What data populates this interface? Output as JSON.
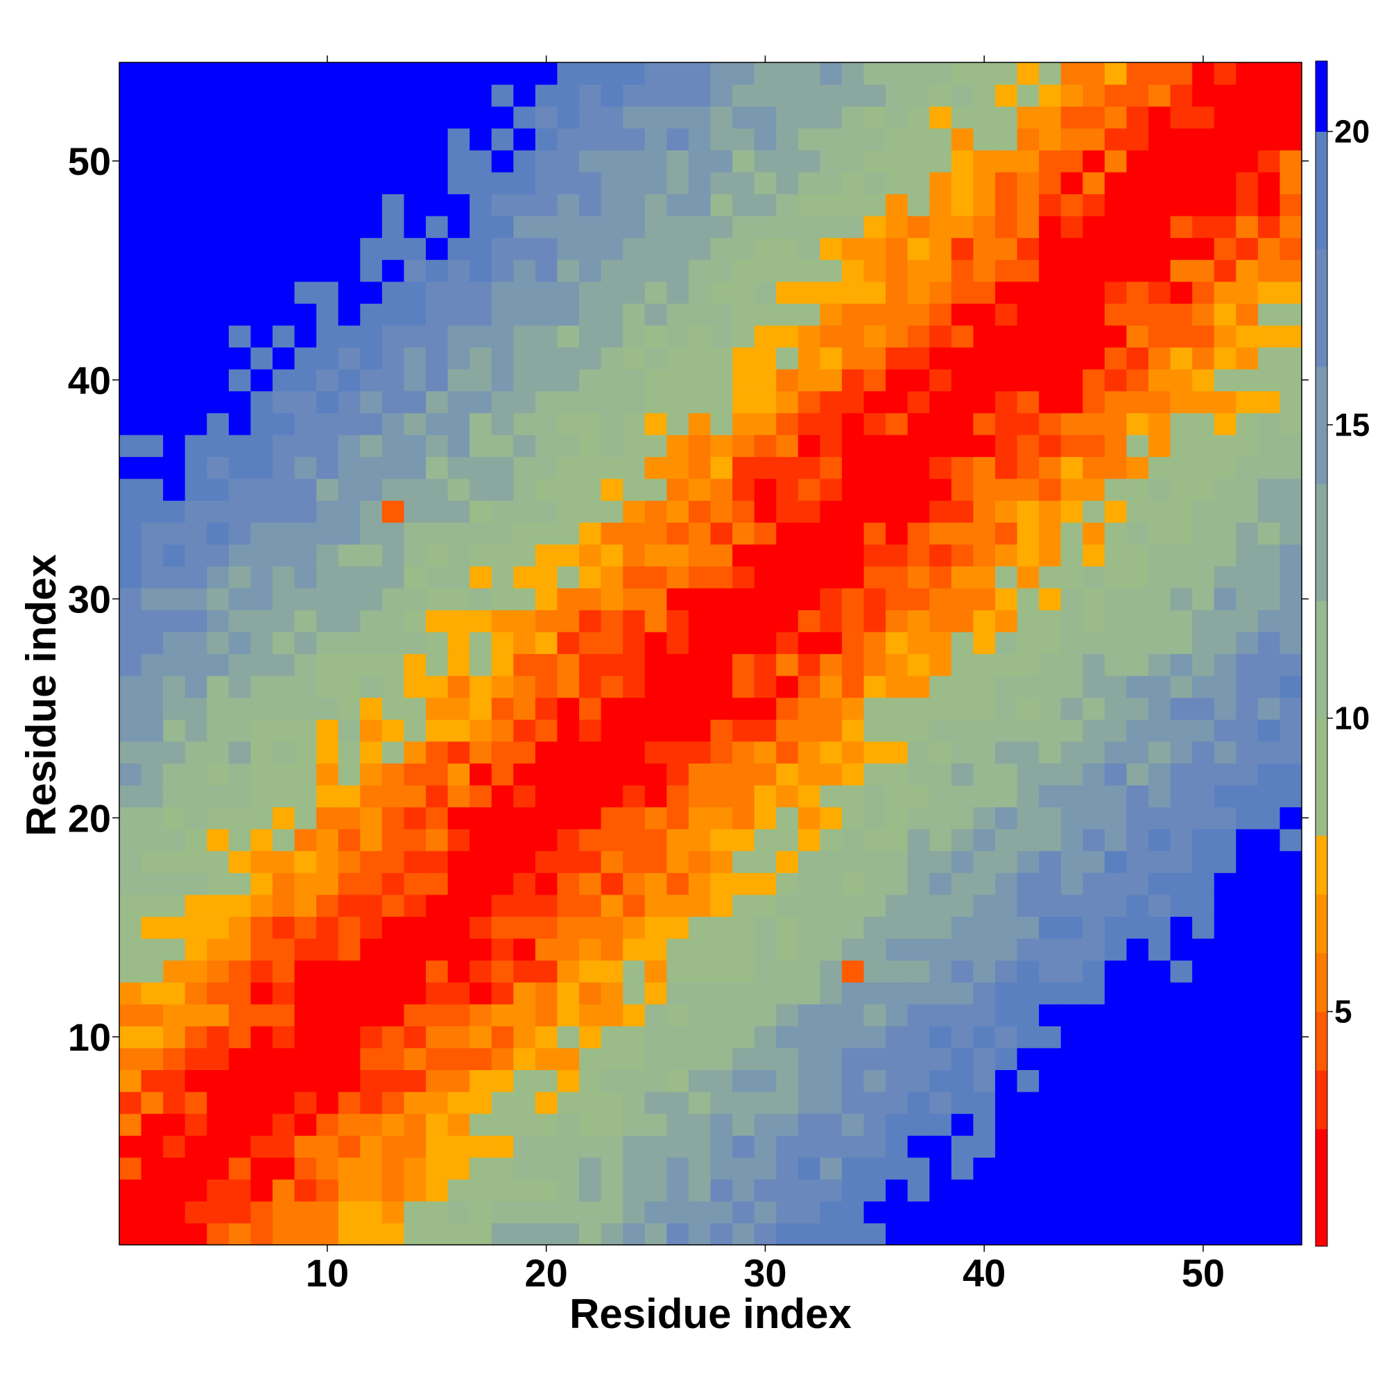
{
  "chart_data": {
    "type": "heatmap",
    "title": "",
    "xlabel": "Residue index",
    "ylabel": "Residue index",
    "n": 54,
    "xlim": [
      0.5,
      54.5
    ],
    "ylim": [
      0.5,
      54.5
    ],
    "x_ticks": [
      10,
      20,
      30,
      40,
      50
    ],
    "y_ticks": [
      10,
      20,
      30,
      40,
      50
    ],
    "x_tick_labels": [
      "10",
      "20",
      "30",
      "40",
      "50"
    ],
    "y_tick_labels": [
      "10",
      "20",
      "30",
      "40",
      "50"
    ],
    "colorbar": {
      "range": [
        1,
        21.2
      ],
      "ticks": [
        5,
        10,
        15,
        20
      ],
      "tick_labels": [
        "5",
        "10",
        "15",
        "20"
      ],
      "colors": [
        {
          "max": 3,
          "color": "#ff0000"
        },
        {
          "max": 4,
          "color": "#ff3300"
        },
        {
          "max": 5,
          "color": "#ff5a00"
        },
        {
          "max": 6,
          "color": "#ff7a00"
        },
        {
          "max": 7,
          "color": "#ff9100"
        },
        {
          "max": 8,
          "color": "#ffab00"
        },
        {
          "max": 10,
          "color": "#9bbc88"
        },
        {
          "max": 12,
          "color": "#97b890"
        },
        {
          "max": 14,
          "color": "#8aa8a0"
        },
        {
          "max": 16,
          "color": "#7a98b0"
        },
        {
          "max": 18,
          "color": "#6a88bc"
        },
        {
          "max": 20,
          "color": "#5a80c0"
        },
        {
          "max": 999,
          "color": "#0000ff"
        }
      ]
    },
    "value_model": "distance matrix: value approx |i-j|*0.55 + 1.5 within the band, values above 20 shown as blue background",
    "outliers": [
      {
        "x": 13,
        "y": 34,
        "value": 5
      },
      {
        "x": 34,
        "y": 13,
        "value": 5
      }
    ]
  }
}
